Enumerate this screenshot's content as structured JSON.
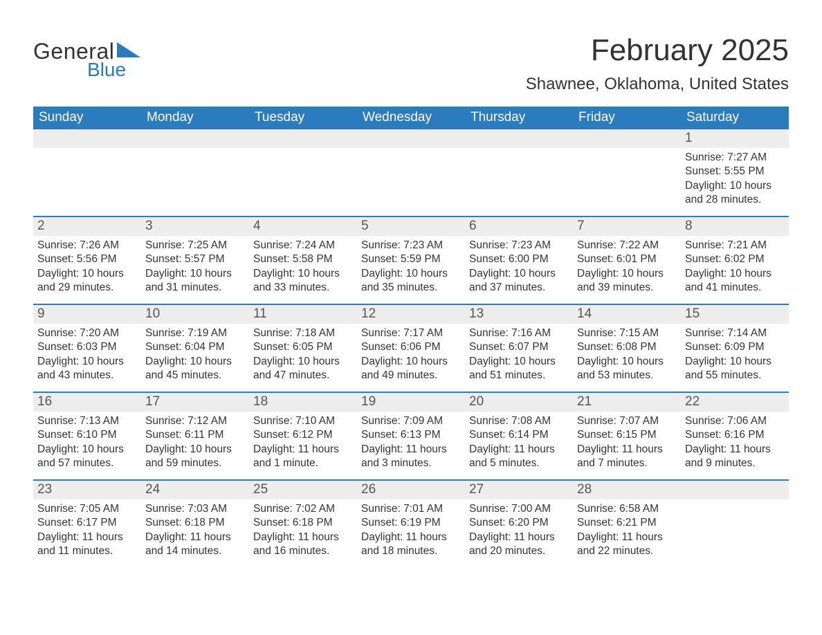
{
  "brand": {
    "word1": "General",
    "word2": "Blue",
    "accent_color": "#2b7bbf",
    "text_color": "#333333"
  },
  "title": "February 2025",
  "location": "Shawnee, Oklahoma, United States",
  "colors": {
    "header_bg": "#2b7bbf",
    "header_text": "#ffffff",
    "daynum_bg": "#ededed",
    "daynum_text": "#555555",
    "body_text": "#333333",
    "week_border": "#2b7bbf",
    "page_bg": "#ffffff"
  },
  "weekdays": [
    "Sunday",
    "Monday",
    "Tuesday",
    "Wednesday",
    "Thursday",
    "Friday",
    "Saturday"
  ],
  "weeks": [
    {
      "days": [
        {
          "num": "",
          "sunrise": "",
          "sunset": "",
          "daylight": ""
        },
        {
          "num": "",
          "sunrise": "",
          "sunset": "",
          "daylight": ""
        },
        {
          "num": "",
          "sunrise": "",
          "sunset": "",
          "daylight": ""
        },
        {
          "num": "",
          "sunrise": "",
          "sunset": "",
          "daylight": ""
        },
        {
          "num": "",
          "sunrise": "",
          "sunset": "",
          "daylight": ""
        },
        {
          "num": "",
          "sunrise": "",
          "sunset": "",
          "daylight": ""
        },
        {
          "num": "1",
          "sunrise": "Sunrise: 7:27 AM",
          "sunset": "Sunset: 5:55 PM",
          "daylight": "Daylight: 10 hours and 28 minutes."
        }
      ]
    },
    {
      "days": [
        {
          "num": "2",
          "sunrise": "Sunrise: 7:26 AM",
          "sunset": "Sunset: 5:56 PM",
          "daylight": "Daylight: 10 hours and 29 minutes."
        },
        {
          "num": "3",
          "sunrise": "Sunrise: 7:25 AM",
          "sunset": "Sunset: 5:57 PM",
          "daylight": "Daylight: 10 hours and 31 minutes."
        },
        {
          "num": "4",
          "sunrise": "Sunrise: 7:24 AM",
          "sunset": "Sunset: 5:58 PM",
          "daylight": "Daylight: 10 hours and 33 minutes."
        },
        {
          "num": "5",
          "sunrise": "Sunrise: 7:23 AM",
          "sunset": "Sunset: 5:59 PM",
          "daylight": "Daylight: 10 hours and 35 minutes."
        },
        {
          "num": "6",
          "sunrise": "Sunrise: 7:23 AM",
          "sunset": "Sunset: 6:00 PM",
          "daylight": "Daylight: 10 hours and 37 minutes."
        },
        {
          "num": "7",
          "sunrise": "Sunrise: 7:22 AM",
          "sunset": "Sunset: 6:01 PM",
          "daylight": "Daylight: 10 hours and 39 minutes."
        },
        {
          "num": "8",
          "sunrise": "Sunrise: 7:21 AM",
          "sunset": "Sunset: 6:02 PM",
          "daylight": "Daylight: 10 hours and 41 minutes."
        }
      ]
    },
    {
      "days": [
        {
          "num": "9",
          "sunrise": "Sunrise: 7:20 AM",
          "sunset": "Sunset: 6:03 PM",
          "daylight": "Daylight: 10 hours and 43 minutes."
        },
        {
          "num": "10",
          "sunrise": "Sunrise: 7:19 AM",
          "sunset": "Sunset: 6:04 PM",
          "daylight": "Daylight: 10 hours and 45 minutes."
        },
        {
          "num": "11",
          "sunrise": "Sunrise: 7:18 AM",
          "sunset": "Sunset: 6:05 PM",
          "daylight": "Daylight: 10 hours and 47 minutes."
        },
        {
          "num": "12",
          "sunrise": "Sunrise: 7:17 AM",
          "sunset": "Sunset: 6:06 PM",
          "daylight": "Daylight: 10 hours and 49 minutes."
        },
        {
          "num": "13",
          "sunrise": "Sunrise: 7:16 AM",
          "sunset": "Sunset: 6:07 PM",
          "daylight": "Daylight: 10 hours and 51 minutes."
        },
        {
          "num": "14",
          "sunrise": "Sunrise: 7:15 AM",
          "sunset": "Sunset: 6:08 PM",
          "daylight": "Daylight: 10 hours and 53 minutes."
        },
        {
          "num": "15",
          "sunrise": "Sunrise: 7:14 AM",
          "sunset": "Sunset: 6:09 PM",
          "daylight": "Daylight: 10 hours and 55 minutes."
        }
      ]
    },
    {
      "days": [
        {
          "num": "16",
          "sunrise": "Sunrise: 7:13 AM",
          "sunset": "Sunset: 6:10 PM",
          "daylight": "Daylight: 10 hours and 57 minutes."
        },
        {
          "num": "17",
          "sunrise": "Sunrise: 7:12 AM",
          "sunset": "Sunset: 6:11 PM",
          "daylight": "Daylight: 10 hours and 59 minutes."
        },
        {
          "num": "18",
          "sunrise": "Sunrise: 7:10 AM",
          "sunset": "Sunset: 6:12 PM",
          "daylight": "Daylight: 11 hours and 1 minute."
        },
        {
          "num": "19",
          "sunrise": "Sunrise: 7:09 AM",
          "sunset": "Sunset: 6:13 PM",
          "daylight": "Daylight: 11 hours and 3 minutes."
        },
        {
          "num": "20",
          "sunrise": "Sunrise: 7:08 AM",
          "sunset": "Sunset: 6:14 PM",
          "daylight": "Daylight: 11 hours and 5 minutes."
        },
        {
          "num": "21",
          "sunrise": "Sunrise: 7:07 AM",
          "sunset": "Sunset: 6:15 PM",
          "daylight": "Daylight: 11 hours and 7 minutes."
        },
        {
          "num": "22",
          "sunrise": "Sunrise: 7:06 AM",
          "sunset": "Sunset: 6:16 PM",
          "daylight": "Daylight: 11 hours and 9 minutes."
        }
      ]
    },
    {
      "days": [
        {
          "num": "23",
          "sunrise": "Sunrise: 7:05 AM",
          "sunset": "Sunset: 6:17 PM",
          "daylight": "Daylight: 11 hours and 11 minutes."
        },
        {
          "num": "24",
          "sunrise": "Sunrise: 7:03 AM",
          "sunset": "Sunset: 6:18 PM",
          "daylight": "Daylight: 11 hours and 14 minutes."
        },
        {
          "num": "25",
          "sunrise": "Sunrise: 7:02 AM",
          "sunset": "Sunset: 6:18 PM",
          "daylight": "Daylight: 11 hours and 16 minutes."
        },
        {
          "num": "26",
          "sunrise": "Sunrise: 7:01 AM",
          "sunset": "Sunset: 6:19 PM",
          "daylight": "Daylight: 11 hours and 18 minutes."
        },
        {
          "num": "27",
          "sunrise": "Sunrise: 7:00 AM",
          "sunset": "Sunset: 6:20 PM",
          "daylight": "Daylight: 11 hours and 20 minutes."
        },
        {
          "num": "28",
          "sunrise": "Sunrise: 6:58 AM",
          "sunset": "Sunset: 6:21 PM",
          "daylight": "Daylight: 11 hours and 22 minutes."
        },
        {
          "num": "",
          "sunrise": "",
          "sunset": "",
          "daylight": ""
        }
      ]
    }
  ]
}
